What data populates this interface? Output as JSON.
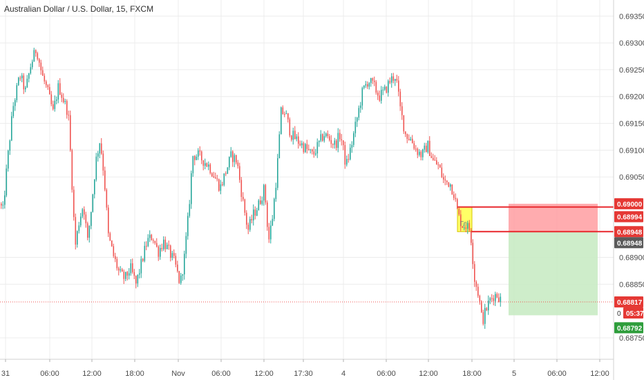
{
  "title": "Australian Dollar / U.S. Dollar, 15, FXCM",
  "colors": {
    "up": "#26a69a",
    "down": "#ef5350",
    "grid": "#ececec",
    "current_line": "#ef5350",
    "stop_zone": "#ff9ea1",
    "target_zone": "#c9ebc4",
    "highlight_box": "#ffff66",
    "level_line": "#e8272c",
    "tag_red": "#e53935",
    "tag_green": "#2e9d3b",
    "tag_dark": "#5b5b5b"
  },
  "chart_data": {
    "type": "candlestick",
    "symbol": "AUDUSD",
    "timeframe": "15",
    "source": "FXCM",
    "ylim": [
      0.6871,
      0.6938
    ],
    "y_ticks": [
      "0.69350",
      "0.69300",
      "0.69250",
      "0.69200",
      "0.69150",
      "0.69100",
      "0.69050",
      "0.68900",
      "0.68850",
      "0.68750"
    ],
    "x_ticks": [
      "31",
      "06:00",
      "12:00",
      "18:00",
      "Nov",
      "06:00",
      "12:00",
      "17:30",
      "4",
      "06:00",
      "12:00",
      "18:00",
      "5",
      "06:00",
      "12:00"
    ],
    "price_tags": [
      {
        "label": "0.69000",
        "value": 0.69,
        "style": "red"
      },
      {
        "label": "0.68994",
        "value": 0.68994,
        "style": "red"
      },
      {
        "label": "0.68948",
        "value": 0.68948,
        "style": "red"
      },
      {
        "label": "0.68948",
        "value": 0.68948,
        "style": "dark"
      },
      {
        "label": "0.68817",
        "value": 0.68817,
        "style": "red"
      },
      {
        "label": "0",
        "value": 0.68805,
        "style": "plain"
      },
      {
        "label": "05:37",
        "value": 0.68805,
        "style": "red"
      },
      {
        "label": "0.68792",
        "value": 0.68792,
        "style": "green"
      }
    ],
    "levels": [
      0.68994,
      0.68948
    ],
    "current_price": 0.68817,
    "highlight_box_text": "Гл",
    "position": {
      "entry": 0.68948,
      "stop": 0.69,
      "target": 0.68792
    },
    "path_points": [
      [
        0,
        0.69
      ],
      [
        3,
        0.6898
      ],
      [
        10,
        0.6908
      ],
      [
        18,
        0.6918
      ],
      [
        28,
        0.6924
      ],
      [
        36,
        0.6921
      ],
      [
        44,
        0.6926
      ],
      [
        52,
        0.6929
      ],
      [
        60,
        0.6924
      ],
      [
        68,
        0.6921
      ],
      [
        76,
        0.6917
      ],
      [
        84,
        0.6922
      ],
      [
        92,
        0.6919
      ],
      [
        98,
        0.6917
      ],
      [
        103,
        0.6905
      ],
      [
        108,
        0.6892
      ],
      [
        114,
        0.6897
      ],
      [
        120,
        0.69
      ],
      [
        126,
        0.6893
      ],
      [
        132,
        0.69
      ],
      [
        138,
        0.6908
      ],
      [
        144,
        0.6912
      ],
      [
        150,
        0.6905
      ],
      [
        156,
        0.6894
      ],
      [
        164,
        0.689
      ],
      [
        172,
        0.6887
      ],
      [
        180,
        0.6886
      ],
      [
        188,
        0.6888
      ],
      [
        196,
        0.6885
      ],
      [
        204,
        0.6889
      ],
      [
        212,
        0.6893
      ],
      [
        220,
        0.6894
      ],
      [
        228,
        0.6891
      ],
      [
        236,
        0.6893
      ],
      [
        244,
        0.6891
      ],
      [
        252,
        0.6889
      ],
      [
        260,
        0.6885
      ],
      [
        266,
        0.689
      ],
      [
        272,
        0.6898
      ],
      [
        278,
        0.6909
      ],
      [
        286,
        0.6909
      ],
      [
        294,
        0.6908
      ],
      [
        302,
        0.6907
      ],
      [
        310,
        0.6905
      ],
      [
        318,
        0.6903
      ],
      [
        326,
        0.6906
      ],
      [
        334,
        0.6909
      ],
      [
        342,
        0.6908
      ],
      [
        350,
        0.6901
      ],
      [
        358,
        0.6895
      ],
      [
        366,
        0.6898
      ],
      [
        374,
        0.69
      ],
      [
        382,
        0.6903
      ],
      [
        388,
        0.6893
      ],
      [
        394,
        0.6898
      ],
      [
        400,
        0.6906
      ],
      [
        406,
        0.6917
      ],
      [
        412,
        0.6917
      ],
      [
        420,
        0.6913
      ],
      [
        428,
        0.6912
      ],
      [
        436,
        0.6911
      ],
      [
        444,
        0.691
      ],
      [
        452,
        0.6909
      ],
      [
        460,
        0.6911
      ],
      [
        468,
        0.6913
      ],
      [
        476,
        0.6912
      ],
      [
        484,
        0.6911
      ],
      [
        492,
        0.6913
      ],
      [
        500,
        0.6907
      ],
      [
        508,
        0.6911
      ],
      [
        516,
        0.6916
      ],
      [
        524,
        0.6921
      ],
      [
        532,
        0.6923
      ],
      [
        540,
        0.6922
      ],
      [
        548,
        0.692
      ],
      [
        556,
        0.6921
      ],
      [
        564,
        0.6923
      ],
      [
        572,
        0.6924
      ],
      [
        578,
        0.6918
      ],
      [
        586,
        0.6913
      ],
      [
        594,
        0.6912
      ],
      [
        602,
        0.691
      ],
      [
        610,
        0.6909
      ],
      [
        618,
        0.6911
      ],
      [
        626,
        0.6908
      ],
      [
        634,
        0.6907
      ],
      [
        642,
        0.6904
      ],
      [
        650,
        0.6904
      ],
      [
        656,
        0.6902
      ],
      [
        662,
        0.6898
      ],
      [
        668,
        0.6896
      ],
      [
        674,
        0.6896
      ],
      [
        680,
        0.6895
      ],
      [
        686,
        0.6886
      ],
      [
        692,
        0.6883
      ],
      [
        697,
        0.6878
      ],
      [
        702,
        0.688
      ],
      [
        708,
        0.6882
      ],
      [
        714,
        0.6883
      ],
      [
        720,
        0.6883
      ],
      [
        725,
        0.68817
      ]
    ]
  }
}
